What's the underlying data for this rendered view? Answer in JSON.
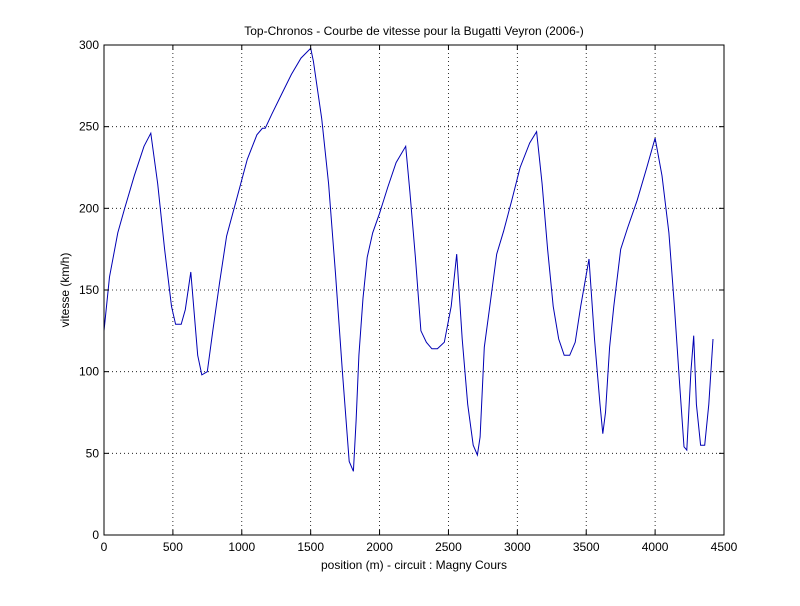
{
  "chart_data": {
    "type": "line",
    "title": "Top-Chronos - Courbe de vitesse pour la Bugatti Veyron (2006-)",
    "xlabel": "position (m) - circuit : Magny Cours",
    "ylabel": "vitesse (km/h)",
    "xlim": [
      0,
      4500
    ],
    "ylim": [
      0,
      300
    ],
    "xticks": [
      0,
      500,
      1000,
      1500,
      2000,
      2500,
      3000,
      3500,
      4000,
      4500
    ],
    "yticks": [
      0,
      50,
      100,
      150,
      200,
      250,
      300
    ],
    "grid": true,
    "line_color": "#0000b4",
    "series": [
      {
        "x": [
          0,
          40,
          100,
          150,
          220,
          290,
          340,
          390,
          440,
          490,
          520,
          560,
          590,
          630,
          680,
          710,
          750,
          790,
          840,
          890,
          960,
          1040,
          1110,
          1150,
          1170,
          1220,
          1290,
          1360,
          1430,
          1500,
          1520,
          1580,
          1630,
          1680,
          1730,
          1780,
          1810,
          1830,
          1850,
          1880,
          1910,
          1950,
          2000,
          2060,
          2120,
          2190,
          2220,
          2260,
          2300,
          2340,
          2380,
          2420,
          2470,
          2520,
          2560,
          2600,
          2640,
          2680,
          2710,
          2730,
          2760,
          2800,
          2850,
          2900,
          2960,
          3020,
          3090,
          3140,
          3180,
          3220,
          3260,
          3300,
          3340,
          3380,
          3420,
          3460,
          3520,
          3560,
          3600,
          3620,
          3640,
          3670,
          3700,
          3750,
          3800,
          3870,
          3940,
          4000,
          4050,
          4100,
          4140,
          4180,
          4210,
          4230,
          4260,
          4280,
          4300,
          4330,
          4360,
          4390,
          4420
        ],
        "y": [
          125,
          158,
          185,
          200,
          220,
          238,
          246,
          215,
          175,
          140,
          129,
          129,
          138,
          161,
          110,
          98,
          100,
          125,
          155,
          183,
          205,
          230,
          245,
          249,
          249,
          258,
          270,
          282,
          292,
          298,
          290,
          255,
          215,
          160,
          100,
          45,
          39,
          70,
          110,
          145,
          170,
          185,
          197,
          213,
          228,
          238,
          210,
          170,
          125,
          118,
          114,
          114,
          118,
          140,
          172,
          120,
          80,
          55,
          49,
          60,
          115,
          140,
          172,
          186,
          205,
          225,
          240,
          247,
          215,
          175,
          140,
          120,
          110,
          110,
          118,
          140,
          169,
          120,
          80,
          62,
          75,
          115,
          140,
          175,
          188,
          205,
          225,
          243,
          220,
          185,
          140,
          90,
          54,
          52,
          100,
          122,
          80,
          55,
          55,
          80,
          120
        ]
      }
    ]
  }
}
